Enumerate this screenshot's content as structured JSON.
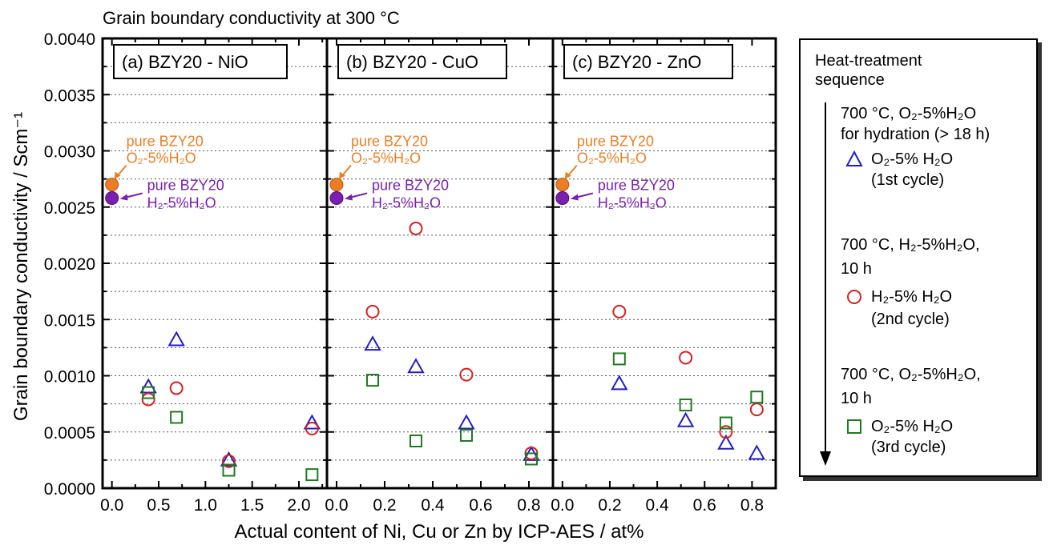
{
  "title": "Grain boundary conductivity at 300 °C",
  "colors": {
    "o2": "#1f1fc8",
    "h2": "#d62020",
    "o2_third": "#1f7a1f",
    "pure_o2": "#ec7d22",
    "pure_h2": "#7a1fb0"
  },
  "legend": {
    "heading_line1": "Heat-treatment",
    "heading_line2": "sequence",
    "step1_line1": "700 °C, O₂-5%H₂O",
    "step1_line2": "for hydration (> 18 h)",
    "entry1_label": "O₂-5% H₂O",
    "entry1_sub": "(1st cycle)",
    "step2_line1": "700 °C, H₂-5%H₂O,",
    "step2_line2": "10 h",
    "entry2_label": "H₂-5% H₂O",
    "entry2_sub": "(2nd cycle)",
    "step3_line1": "700 °C, O₂-5%H₂O,",
    "step3_line2": "10 h",
    "entry3_label": "O₂-5% H₂O",
    "entry3_sub": "(3rd cycle)"
  },
  "chart_data": {
    "type": "scatter",
    "title": "Grain boundary conductivity at 300 °C",
    "xlabel": "Actual content of Ni, Cu or Zn by ICP-AES / at%",
    "ylabel": "Grain boundary conductivity / Scm⁻¹",
    "ylim": [
      0,
      0.004
    ],
    "yticks": [
      "0.0000",
      "0.0005",
      "0.0010",
      "0.0015",
      "0.0020",
      "0.0025",
      "0.0030",
      "0.0035",
      "0.0040"
    ],
    "grid": "horizontal dotted",
    "pure_labels": {
      "o2_line1": "pure BZY20",
      "o2_line2": "O₂-5%H₂O",
      "h2_line1": "pure BZY20",
      "h2_line2": "H₂-5%H₂O"
    },
    "panels": [
      {
        "label": "(a) BZY20 - NiO",
        "xlim": [
          -0.1,
          2.3
        ],
        "xticks": [
          0.0,
          0.5,
          1.0,
          1.5,
          2.0
        ],
        "xticklabels": [
          "0.0",
          "0.5",
          "1.0",
          "1.5",
          "2.0"
        ],
        "pure": {
          "o2": [
            0.0,
            0.0027
          ],
          "h2": [
            0.0,
            0.00258
          ]
        },
        "series": [
          {
            "name": "O₂-5% H₂O (1st cycle)",
            "marker": "triangle",
            "x": [
              0.39,
              0.69,
              1.25,
              2.14
            ],
            "y": [
              0.0009,
              0.00132,
              0.00025,
              0.00058
            ]
          },
          {
            "name": "H₂-5% H₂O (2nd cycle)",
            "marker": "circle",
            "x": [
              0.39,
              0.69,
              1.25,
              2.14
            ],
            "y": [
              0.00079,
              0.00089,
              0.00024,
              0.00053
            ]
          },
          {
            "name": "O₂-5% H₂O (3rd cycle)",
            "marker": "square",
            "x": [
              0.39,
              0.69,
              1.25,
              2.14
            ],
            "y": [
              0.00085,
              0.00063,
              0.00016,
              0.00012
            ]
          }
        ]
      },
      {
        "label": "(b) BZY20 - CuO",
        "xlim": [
          -0.04,
          0.9
        ],
        "xticks": [
          0.0,
          0.2,
          0.4,
          0.6,
          0.8
        ],
        "xticklabels": [
          "0.0",
          "0.2",
          "0.4",
          "0.6",
          "0.8"
        ],
        "pure": {
          "o2": [
            0.0,
            0.0027
          ],
          "h2": [
            0.0,
            0.00258
          ]
        },
        "series": [
          {
            "name": "O₂-5% H₂O (1st cycle)",
            "marker": "triangle",
            "x": [
              0.15,
              0.33,
              0.54,
              0.81
            ],
            "y": [
              0.00128,
              0.00108,
              0.00058,
              0.0003
            ]
          },
          {
            "name": "H₂-5% H₂O (2nd cycle)",
            "marker": "circle",
            "x": [
              0.15,
              0.33,
              0.54,
              0.81
            ],
            "y": [
              0.00157,
              0.00231,
              0.00101,
              0.00031
            ]
          },
          {
            "name": "O₂-5% H₂O (3rd cycle)",
            "marker": "square",
            "x": [
              0.15,
              0.33,
              0.54,
              0.81
            ],
            "y": [
              0.00096,
              0.00042,
              0.00047,
              0.00026
            ]
          }
        ]
      },
      {
        "label": "(c) BZY20 - ZnO",
        "xlim": [
          -0.04,
          0.9
        ],
        "xticks": [
          0.0,
          0.2,
          0.4,
          0.6,
          0.8
        ],
        "xticklabels": [
          "0.0",
          "0.2",
          "0.4",
          "0.6",
          "0.8"
        ],
        "pure": {
          "o2": [
            0.0,
            0.0027
          ],
          "h2": [
            0.0,
            0.00258
          ]
        },
        "series": [
          {
            "name": "O₂-5% H₂O (1st cycle)",
            "marker": "triangle",
            "x": [
              0.24,
              0.52,
              0.69,
              0.82
            ],
            "y": [
              0.00093,
              0.0006,
              0.0004,
              0.00031
            ]
          },
          {
            "name": "H₂-5% H₂O (2nd cycle)",
            "marker": "circle",
            "x": [
              0.24,
              0.52,
              0.69,
              0.82
            ],
            "y": [
              0.00157,
              0.00116,
              0.0005,
              0.0007
            ]
          },
          {
            "name": "O₂-5% H₂O (3rd cycle)",
            "marker": "square",
            "x": [
              0.24,
              0.52,
              0.69,
              0.82
            ],
            "y": [
              0.00115,
              0.00074,
              0.00058,
              0.00081
            ]
          }
        ]
      }
    ]
  }
}
